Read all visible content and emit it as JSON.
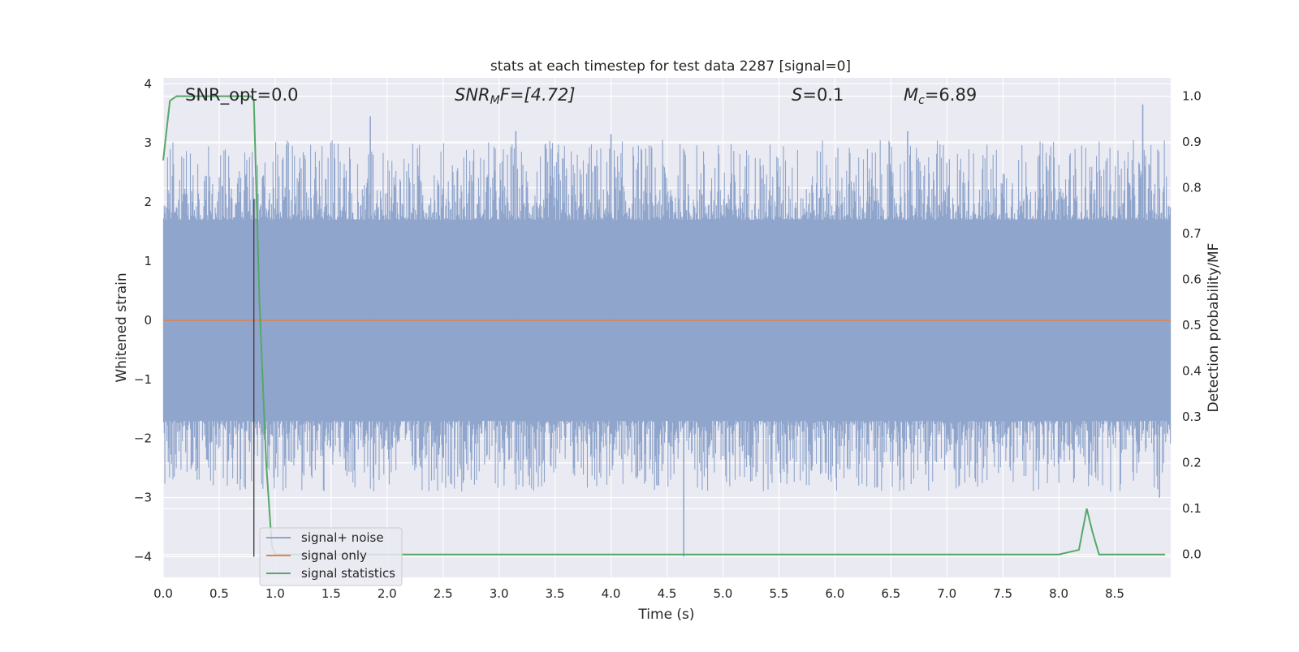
{
  "chart_data": {
    "type": "line",
    "title": "stats at each timestep for test data 2287 [signal=0]",
    "xlabel": "Time (s)",
    "ylabel": "Whitened strain",
    "y2label": "Detection probability/MF",
    "xlim": [
      0.0,
      9.0
    ],
    "ylim": [
      -4.35,
      4.1
    ],
    "y2lim": [
      -0.05,
      1.04
    ],
    "xticks": [
      "0.0",
      "0.5",
      "1.0",
      "1.5",
      "2.0",
      "2.5",
      "3.0",
      "3.5",
      "4.0",
      "4.5",
      "5.0",
      "5.5",
      "6.0",
      "6.5",
      "7.0",
      "7.5",
      "8.0",
      "8.5"
    ],
    "yticks": [
      "4",
      "3",
      "2",
      "1",
      "0",
      "−1",
      "−2",
      "−3",
      "−4"
    ],
    "y2ticks": [
      "1.0",
      "0.9",
      "0.8",
      "0.7",
      "0.6",
      "0.5",
      "0.4",
      "0.3",
      "0.2",
      "0.1",
      "0.0"
    ],
    "grid": true,
    "legend_position": "lower-left",
    "annotations": {
      "snr_opt": "SNR_opt=0.0",
      "snr_mf_base": "SNR",
      "snr_mf_sub": "M",
      "snr_mf_rest": "F=[4.72]",
      "s_base": "S",
      "s_rest": "=0.1",
      "mc_base": "M",
      "mc_sub": "c",
      "mc_rest": "=6.89"
    },
    "vertical_marker_x": 0.81,
    "series": [
      {
        "name": "signal+ noise",
        "color": "#8fa5cc",
        "kind": "noise",
        "typical_range": [
          -1.7,
          1.7
        ],
        "notable_peaks": [
          {
            "x": 1.85,
            "y": 3.45
          },
          {
            "x": 3.15,
            "y": 3.2
          },
          {
            "x": 4.0,
            "y": 3.15
          },
          {
            "x": 4.65,
            "y": -4.0
          },
          {
            "x": 6.65,
            "y": 3.2
          },
          {
            "x": 8.75,
            "y": 3.65
          },
          {
            "x": 8.9,
            "y": -3.0
          }
        ]
      },
      {
        "name": "signal only",
        "color": "#dd8452",
        "x": [
          0.0,
          9.0
        ],
        "y": [
          0.0,
          0.0
        ]
      },
      {
        "name": "signal statistics",
        "color": "#55a868",
        "axis": "right",
        "x": [
          0.0,
          0.06,
          0.12,
          0.2,
          0.5,
          0.78,
          0.81,
          0.86,
          0.92,
          0.97,
          1.0,
          2.0,
          4.0,
          6.0,
          8.0,
          8.18,
          8.25,
          8.3,
          8.36,
          8.5,
          8.95
        ],
        "y": [
          0.86,
          0.99,
          1.0,
          1.0,
          1.0,
          1.0,
          0.99,
          0.55,
          0.2,
          0.02,
          0.0,
          0.0,
          0.0,
          0.0,
          0.0,
          0.01,
          0.1,
          0.05,
          0.0,
          0.0,
          0.0
        ]
      }
    ]
  }
}
